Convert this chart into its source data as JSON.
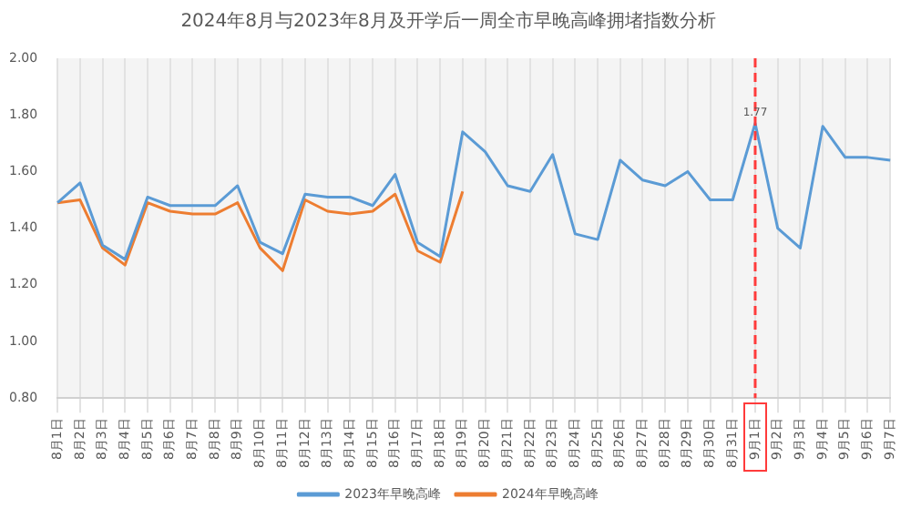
{
  "chart_data": {
    "type": "line",
    "title": "2024年8月与2023年8月及开学后一周全市早晚高峰拥堵指数分析",
    "categories": [
      "8月1日",
      "8月2日",
      "8月3日",
      "8月4日",
      "8月5日",
      "8月6日",
      "8月7日",
      "8月8日",
      "8月9日",
      "8月10日",
      "8月11日",
      "8月12日",
      "8月13日",
      "8月14日",
      "8月15日",
      "8月16日",
      "8月17日",
      "8月18日",
      "8月19日",
      "8月20日",
      "8月21日",
      "8月22日",
      "8月23日",
      "8月24日",
      "8月25日",
      "8月26日",
      "8月27日",
      "8月28日",
      "8月29日",
      "8月30日",
      "8月31日",
      "9月1日",
      "9月2日",
      "9月3日",
      "9月4日",
      "9月5日",
      "9月6日",
      "9月7日"
    ],
    "series": [
      {
        "name": "2023年早晚高峰",
        "color": "#5b9bd5",
        "values": [
          1.49,
          1.56,
          1.34,
          1.29,
          1.51,
          1.48,
          1.48,
          1.48,
          1.55,
          1.35,
          1.31,
          1.52,
          1.51,
          1.51,
          1.48,
          1.59,
          1.35,
          1.3,
          1.74,
          1.67,
          1.55,
          1.53,
          1.66,
          1.38,
          1.36,
          1.64,
          1.57,
          1.55,
          1.6,
          1.5,
          1.5,
          1.77,
          1.4,
          1.33,
          1.76,
          1.65,
          1.65,
          1.64
        ],
        "value_labels": [
          null,
          null,
          null,
          null,
          null,
          null,
          null,
          null,
          null,
          null,
          null,
          null,
          null,
          null,
          null,
          null,
          null,
          null,
          null,
          null,
          null,
          null,
          null,
          null,
          null,
          null,
          null,
          null,
          null,
          null,
          null,
          "1.77",
          null,
          null,
          null,
          null,
          null,
          null
        ]
      },
      {
        "name": "2024年早晚高峰",
        "color": "#ed7d31",
        "values": [
          1.49,
          1.5,
          1.33,
          1.27,
          1.49,
          1.46,
          1.45,
          1.45,
          1.49,
          1.33,
          1.25,
          1.5,
          1.46,
          1.45,
          1.46,
          1.52,
          1.32,
          1.28,
          1.53,
          null,
          null,
          null,
          null,
          null,
          null,
          null,
          null,
          null,
          null,
          null,
          null,
          null,
          null,
          null,
          null,
          null,
          null,
          null
        ]
      }
    ],
    "ylim": [
      0.8,
      2.0
    ],
    "yticks": [
      {
        "value": 0.8,
        "label": "0.80"
      },
      {
        "value": 1.0,
        "label": "1.00"
      },
      {
        "value": 1.2,
        "label": "1.20"
      },
      {
        "value": 1.4,
        "label": "1.40"
      },
      {
        "value": 1.6,
        "label": "1.60"
      },
      {
        "value": 1.8,
        "label": "1.80"
      },
      {
        "value": 2.0,
        "label": "2.00"
      }
    ],
    "grid": "x",
    "legend": "bottom",
    "marker": "none",
    "line_style": "solid",
    "ref_lines": [
      {
        "axis": "x",
        "value": "9月1日",
        "color": "#ff3b3b",
        "line_style": "dashed"
      }
    ]
  }
}
